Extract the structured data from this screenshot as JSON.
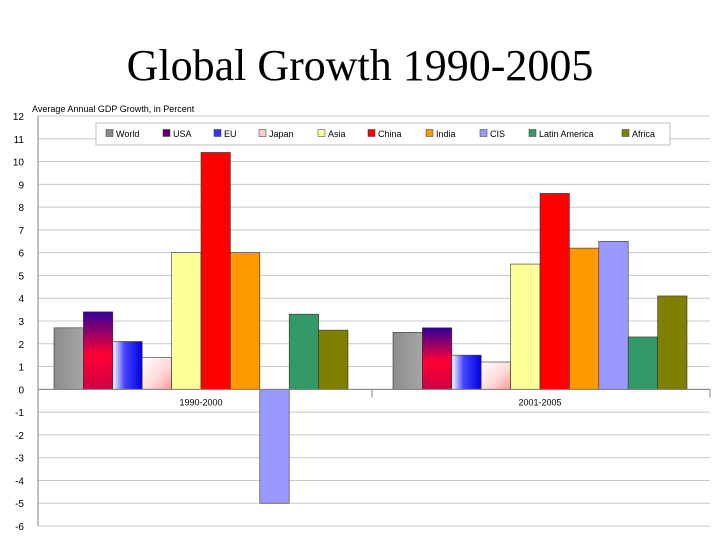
{
  "slide": {
    "title": "Global Growth 1990-2005"
  },
  "chart_data": {
    "type": "bar",
    "title": "Average Annual GDP Growth, in Percent",
    "xlabel": "",
    "ylabel": "",
    "ylim": [
      -6,
      12
    ],
    "yticks": [
      12,
      11,
      10,
      9,
      8,
      7,
      6,
      5,
      4,
      3,
      2,
      1,
      0,
      -1,
      -2,
      -3,
      -4,
      -5,
      -6
    ],
    "grid": true,
    "legend_position": "top",
    "categories": [
      "1990-2000",
      "2001-2005"
    ],
    "series": [
      {
        "name": "World",
        "color": "#8c8c8c",
        "values": [
          2.7,
          2.5
        ]
      },
      {
        "name": "USA",
        "color": "#660066",
        "values": [
          3.4,
          2.7
        ]
      },
      {
        "name": "EU",
        "color": "#3333ff",
        "values": [
          2.1,
          1.5
        ]
      },
      {
        "name": "Japan",
        "color": "#ffcccc",
        "values": [
          1.4,
          1.2
        ]
      },
      {
        "name": "Asia",
        "color": "#ffff99",
        "values": [
          6.0,
          5.5
        ]
      },
      {
        "name": "China",
        "color": "#ff0000",
        "values": [
          10.4,
          8.6
        ]
      },
      {
        "name": "India",
        "color": "#ff9900",
        "values": [
          6.0,
          6.2
        ]
      },
      {
        "name": "CIS",
        "color": "#9999ff",
        "values": [
          -5.0,
          6.5
        ]
      },
      {
        "name": "Latin America",
        "color": "#339966",
        "values": [
          3.3,
          2.3
        ]
      },
      {
        "name": "Africa",
        "color": "#808000",
        "values": [
          2.6,
          4.1
        ]
      }
    ]
  }
}
